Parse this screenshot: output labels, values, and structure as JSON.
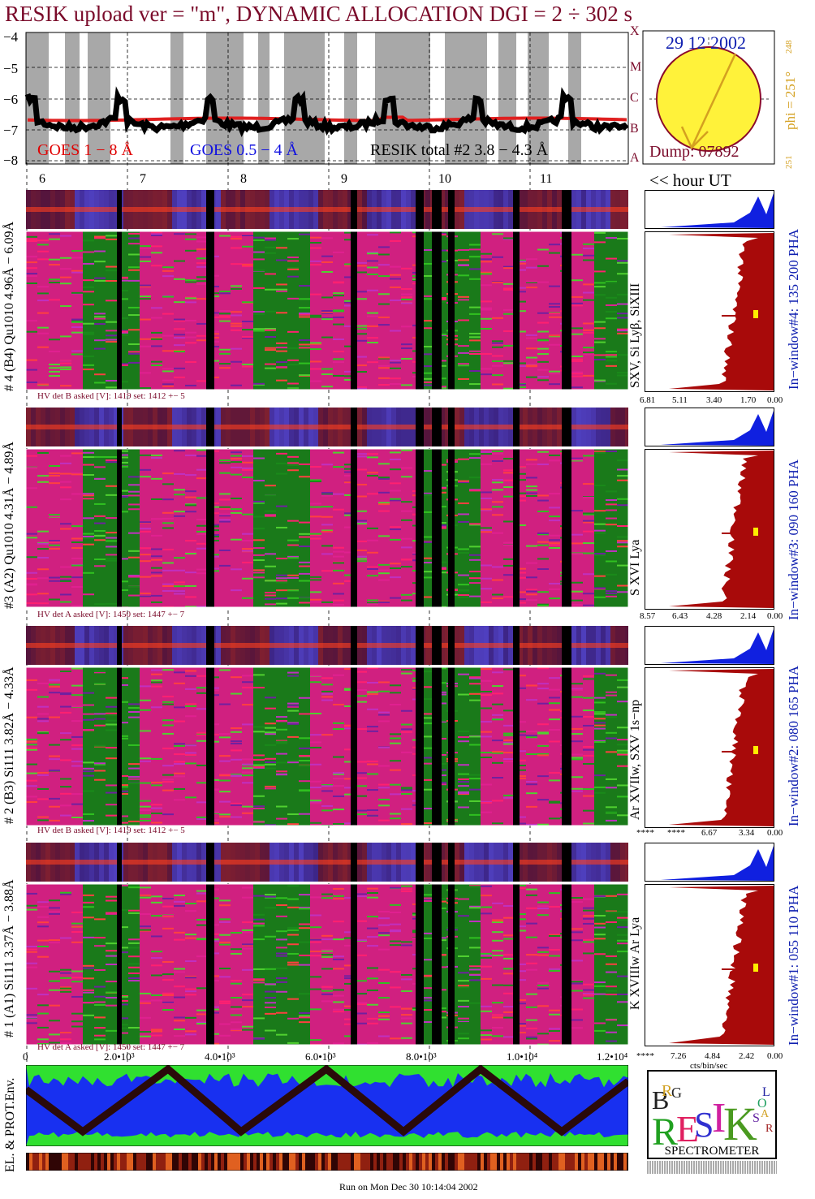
{
  "title": "RESIK upload ver = \"m\", DYNAMIC ALLOCATION  DGI =   2 ÷ 302 s",
  "goes_panel": {
    "y_ticks": [
      "−4",
      "−5",
      "−6",
      "−7",
      "−8"
    ],
    "class_labels": [
      "X",
      "M",
      "C",
      "B",
      "A"
    ],
    "legend_goes_1_8": "GOES 1 − 8 Å",
    "legend_goes_05_4": "GOES 0.5 − 4 Å",
    "legend_resik": "RESIK total #2  3.8 − 4.3 Å",
    "colors": {
      "goes_1_8": "#e00000",
      "goes_05_4": "#1010e0",
      "resik": "#000000"
    }
  },
  "sun_panel": {
    "date": "29 12 2002",
    "phi": "phi = 251°",
    "phi_sup": "248",
    "phi_bottom": "251",
    "dump": "Dump: 07892"
  },
  "hours": [
    "6",
    "7",
    "8",
    "9",
    "10",
    "11"
  ],
  "hour_label": "<< hour UT",
  "detectors": [
    {
      "side_label": "# 4 (B4) Qu1010 4.96Å − 6.09Å",
      "lines_label": "SXV, Si Lyβ, SiXIII",
      "window_label": "In−window#4:  135 200 PHA",
      "hv_text": "HV det B asked [V]:  1419 set:  1412  +−   5",
      "axis_ticks": [
        "6.81",
        "5.11",
        "3.40",
        "1.70",
        "0.00"
      ]
    },
    {
      "side_label": "#3 (A2) Qu1010  4.31Å − 4.89Å",
      "lines_label": "S XVI Lya",
      "window_label": "In−window#3:  090 160 PHA",
      "hv_text": "HV det A asked [V]:  1450 set:  1447  +−   7",
      "axis_ticks": [
        "8.57",
        "6.43",
        "4.28",
        "2.14",
        "0.00"
      ]
    },
    {
      "side_label": "# 2 (B3) Si111  3.82Å − 4.33Å",
      "lines_label": "Ar XVIIw,  SXV 1s−np",
      "window_label": "In−window#2:  080 165 PHA",
      "hv_text": "HV det B asked [V]:  1419 set:  1412  +−   5",
      "axis_ticks": [
        "****",
        "****",
        "6.67",
        "3.34",
        "0.00"
      ]
    },
    {
      "side_label": "# 1 (A1) Si111  3.37Å − 3.88Å",
      "lines_label": "K XVIIIw  Ar Lya",
      "window_label": "In−window#1:  055 110 PHA",
      "hv_text": "HV det A asked [V]:  1450 set:  1447  +−   7",
      "axis_ticks": [
        "****",
        "7.26",
        "4.84",
        "2.42",
        "0.00"
      ]
    }
  ],
  "x_axis_ticks": [
    "0",
    "2.0•10³",
    "4.0•10³",
    "6.0•10³",
    "8.0•10³",
    "1.0•10⁴",
    "1.2•10⁴"
  ],
  "pha_unit": "cts/bin/sec",
  "env_label": "EL. & PROT.Env.",
  "logo": {
    "letters": [
      "B",
      "R",
      "G",
      "R",
      "E",
      "S",
      "I",
      "K",
      "S",
      "O",
      "L",
      "A",
      "R"
    ],
    "caption": "SPECTROMETER"
  },
  "footer": "Run on Mon Dec 30 10:14:04 2002"
}
